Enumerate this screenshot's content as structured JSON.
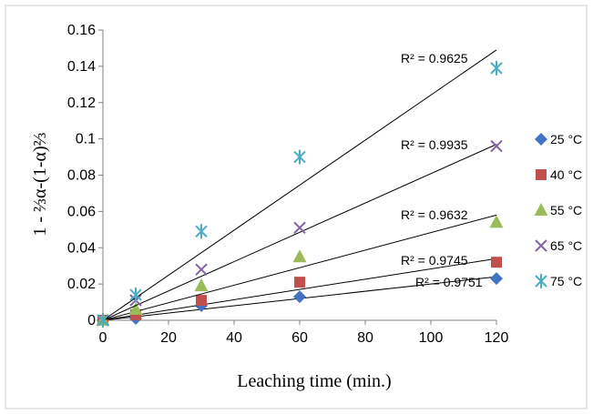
{
  "chart_data": {
    "type": "scatter",
    "title": "",
    "xlabel": "Leaching time (min.)",
    "ylabel": "1 - ⅔α-(1-α)⅔",
    "xlim": [
      0,
      120
    ],
    "ylim": [
      0,
      0.16
    ],
    "xticks": [
      "0",
      "20",
      "40",
      "60",
      "80",
      "100",
      "120"
    ],
    "yticks": [
      "0",
      "0.02",
      "0.04",
      "0.06",
      "0.08",
      "0.1",
      "0.12",
      "0.14",
      "0.16"
    ],
    "x": [
      0,
      10,
      30,
      60,
      120
    ],
    "grid": false,
    "legend_position": "right",
    "series": [
      {
        "name": "25 °C",
        "marker": "diamond",
        "color": "#4472c4",
        "values": [
          0,
          0.001,
          0.008,
          0.013,
          0.023
        ],
        "fit_end": 0.024,
        "r2_label": "R² = 0.9751"
      },
      {
        "name": "40 °C",
        "marker": "square",
        "color": "#c0504d",
        "values": [
          0,
          0.003,
          0.011,
          0.021,
          0.032
        ],
        "fit_end": 0.034,
        "r2_label": "R² = 0.9745"
      },
      {
        "name": "55 °C",
        "marker": "triangle",
        "color": "#9bbb59",
        "values": [
          0,
          0.006,
          0.019,
          0.035,
          0.054
        ],
        "fit_end": 0.058,
        "r2_label": "R² = 0.9632"
      },
      {
        "name": "65 °C",
        "marker": "x",
        "color": "#8064a2",
        "values": [
          0,
          0.011,
          0.028,
          0.051,
          0.096
        ],
        "fit_end": 0.097,
        "r2_label": "R² = 0.9935"
      },
      {
        "name": "75 °C",
        "marker": "asterisk",
        "color": "#4bacc6",
        "values": [
          0,
          0.014,
          0.049,
          0.09,
          0.139
        ],
        "fit_end": 0.149,
        "r2_label": "R² = 0.9625"
      }
    ]
  }
}
